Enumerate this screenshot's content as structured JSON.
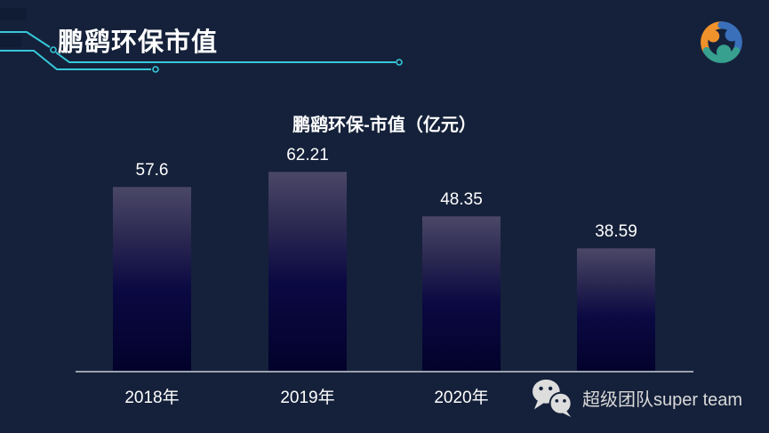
{
  "header": {
    "title": "鹏鹞环保市值"
  },
  "chart_data": {
    "type": "bar",
    "title": "鹏鹞环保-市值（亿元）",
    "categories": [
      "2018年",
      "2019年",
      "2020年",
      ""
    ],
    "values": [
      57.6,
      62.21,
      48.35,
      38.59
    ],
    "value_labels": [
      "57.6",
      "62.21",
      "48.35",
      "38.59"
    ],
    "xlabel": "",
    "ylabel": "",
    "ylim": [
      0,
      70
    ],
    "grid": false,
    "legend": false,
    "data_labels_position": "above-bars",
    "note": "fourth category label hidden behind watermark"
  },
  "watermark": {
    "icon": "wechat-icon",
    "text": "超级团队super team"
  },
  "colors": {
    "background": "#15213A",
    "accent_cyan": "#35C8D8",
    "bar_gradient_top": "#4A4766",
    "bar_gradient_bottom": "#02022B",
    "axis_line": "#99A1AE",
    "text": "#FFFFFF",
    "watermark_text": "#D9D9D9",
    "logo_orange": "#F0922B",
    "logo_blue": "#3A6FBA",
    "logo_teal": "#37A08E"
  }
}
